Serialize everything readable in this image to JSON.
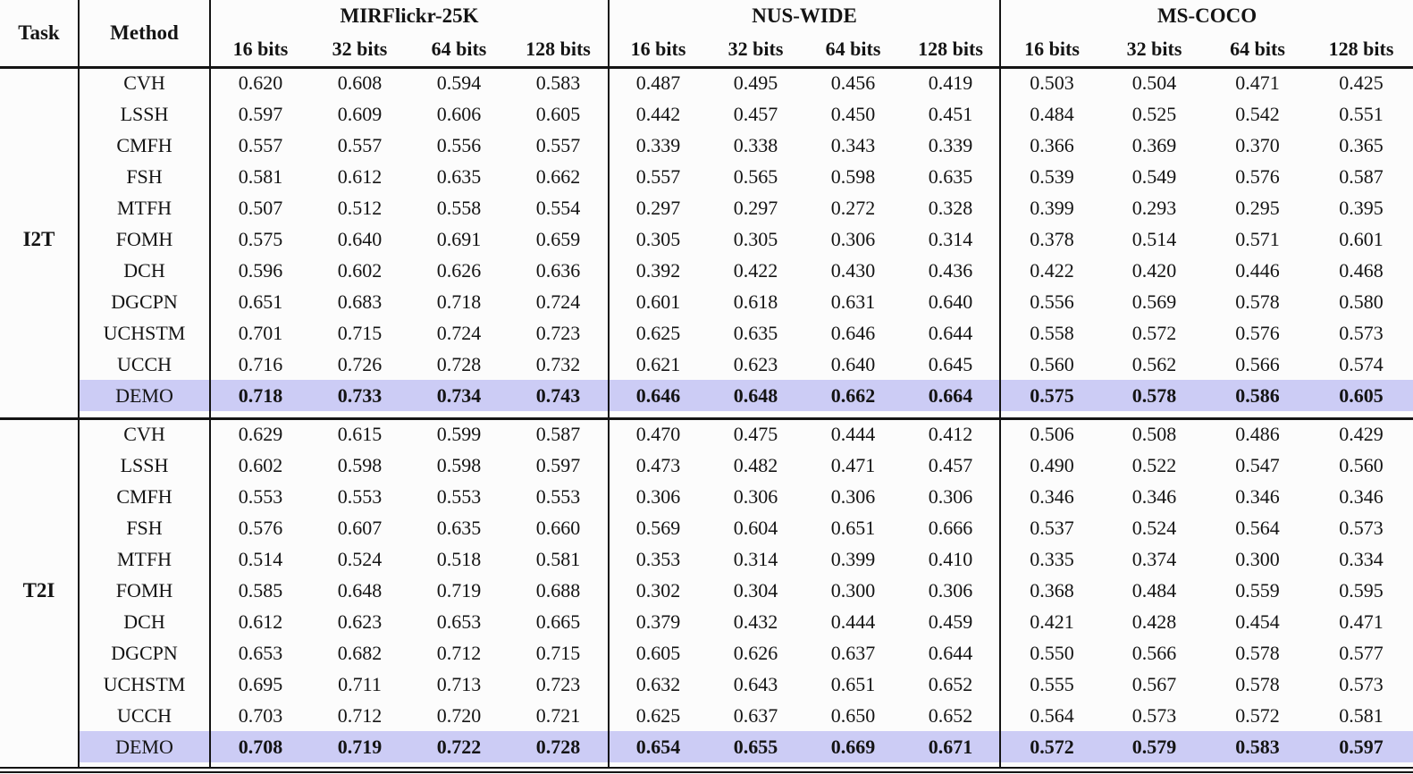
{
  "table": {
    "header": {
      "task": "Task",
      "method": "Method",
      "datasets": [
        "MIRFlickr-25K",
        "NUS-WIDE",
        "MS-COCO"
      ],
      "bits": [
        "16 bits",
        "32 bits",
        "64 bits",
        "128 bits"
      ]
    },
    "highlight_color": "#ccccf5",
    "sections": [
      {
        "task": "I2T",
        "rows": [
          {
            "method": "CVH",
            "highlight": false,
            "values": [
              "0.620",
              "0.608",
              "0.594",
              "0.583",
              "0.487",
              "0.495",
              "0.456",
              "0.419",
              "0.503",
              "0.504",
              "0.471",
              "0.425"
            ]
          },
          {
            "method": "LSSH",
            "highlight": false,
            "values": [
              "0.597",
              "0.609",
              "0.606",
              "0.605",
              "0.442",
              "0.457",
              "0.450",
              "0.451",
              "0.484",
              "0.525",
              "0.542",
              "0.551"
            ]
          },
          {
            "method": "CMFH",
            "highlight": false,
            "values": [
              "0.557",
              "0.557",
              "0.556",
              "0.557",
              "0.339",
              "0.338",
              "0.343",
              "0.339",
              "0.366",
              "0.369",
              "0.370",
              "0.365"
            ]
          },
          {
            "method": "FSH",
            "highlight": false,
            "values": [
              "0.581",
              "0.612",
              "0.635",
              "0.662",
              "0.557",
              "0.565",
              "0.598",
              "0.635",
              "0.539",
              "0.549",
              "0.576",
              "0.587"
            ]
          },
          {
            "method": "MTFH",
            "highlight": false,
            "values": [
              "0.507",
              "0.512",
              "0.558",
              "0.554",
              "0.297",
              "0.297",
              "0.272",
              "0.328",
              "0.399",
              "0.293",
              "0.295",
              "0.395"
            ]
          },
          {
            "method": "FOMH",
            "highlight": false,
            "values": [
              "0.575",
              "0.640",
              "0.691",
              "0.659",
              "0.305",
              "0.305",
              "0.306",
              "0.314",
              "0.378",
              "0.514",
              "0.571",
              "0.601"
            ]
          },
          {
            "method": "DCH",
            "highlight": false,
            "values": [
              "0.596",
              "0.602",
              "0.626",
              "0.636",
              "0.392",
              "0.422",
              "0.430",
              "0.436",
              "0.422",
              "0.420",
              "0.446",
              "0.468"
            ]
          },
          {
            "method": "DGCPN",
            "highlight": false,
            "values": [
              "0.651",
              "0.683",
              "0.718",
              "0.724",
              "0.601",
              "0.618",
              "0.631",
              "0.640",
              "0.556",
              "0.569",
              "0.578",
              "0.580"
            ]
          },
          {
            "method": "UCHSTM",
            "highlight": false,
            "values": [
              "0.701",
              "0.715",
              "0.724",
              "0.723",
              "0.625",
              "0.635",
              "0.646",
              "0.644",
              "0.558",
              "0.572",
              "0.576",
              "0.573"
            ]
          },
          {
            "method": "UCCH",
            "highlight": false,
            "values": [
              "0.716",
              "0.726",
              "0.728",
              "0.732",
              "0.621",
              "0.623",
              "0.640",
              "0.645",
              "0.560",
              "0.562",
              "0.566",
              "0.574"
            ]
          },
          {
            "method": "DEMO",
            "highlight": true,
            "values": [
              "0.718",
              "0.733",
              "0.734",
              "0.743",
              "0.646",
              "0.648",
              "0.662",
              "0.664",
              "0.575",
              "0.578",
              "0.586",
              "0.605"
            ]
          }
        ]
      },
      {
        "task": "T2I",
        "rows": [
          {
            "method": "CVH",
            "highlight": false,
            "values": [
              "0.629",
              "0.615",
              "0.599",
              "0.587",
              "0.470",
              "0.475",
              "0.444",
              "0.412",
              "0.506",
              "0.508",
              "0.486",
              "0.429"
            ]
          },
          {
            "method": "LSSH",
            "highlight": false,
            "values": [
              "0.602",
              "0.598",
              "0.598",
              "0.597",
              "0.473",
              "0.482",
              "0.471",
              "0.457",
              "0.490",
              "0.522",
              "0.547",
              "0.560"
            ]
          },
          {
            "method": "CMFH",
            "highlight": false,
            "values": [
              "0.553",
              "0.553",
              "0.553",
              "0.553",
              "0.306",
              "0.306",
              "0.306",
              "0.306",
              "0.346",
              "0.346",
              "0.346",
              "0.346"
            ]
          },
          {
            "method": "FSH",
            "highlight": false,
            "values": [
              "0.576",
              "0.607",
              "0.635",
              "0.660",
              "0.569",
              "0.604",
              "0.651",
              "0.666",
              "0.537",
              "0.524",
              "0.564",
              "0.573"
            ]
          },
          {
            "method": "MTFH",
            "highlight": false,
            "values": [
              "0.514",
              "0.524",
              "0.518",
              "0.581",
              "0.353",
              "0.314",
              "0.399",
              "0.410",
              "0.335",
              "0.374",
              "0.300",
              "0.334"
            ]
          },
          {
            "method": "FOMH",
            "highlight": false,
            "values": [
              "0.585",
              "0.648",
              "0.719",
              "0.688",
              "0.302",
              "0.304",
              "0.300",
              "0.306",
              "0.368",
              "0.484",
              "0.559",
              "0.595"
            ]
          },
          {
            "method": "DCH",
            "highlight": false,
            "values": [
              "0.612",
              "0.623",
              "0.653",
              "0.665",
              "0.379",
              "0.432",
              "0.444",
              "0.459",
              "0.421",
              "0.428",
              "0.454",
              "0.471"
            ]
          },
          {
            "method": "DGCPN",
            "highlight": false,
            "values": [
              "0.653",
              "0.682",
              "0.712",
              "0.715",
              "0.605",
              "0.626",
              "0.637",
              "0.644",
              "0.550",
              "0.566",
              "0.578",
              "0.577"
            ]
          },
          {
            "method": "UCHSTM",
            "highlight": false,
            "values": [
              "0.695",
              "0.711",
              "0.713",
              "0.723",
              "0.632",
              "0.643",
              "0.651",
              "0.652",
              "0.555",
              "0.567",
              "0.578",
              "0.573"
            ]
          },
          {
            "method": "UCCH",
            "highlight": false,
            "values": [
              "0.703",
              "0.712",
              "0.720",
              "0.721",
              "0.625",
              "0.637",
              "0.650",
              "0.652",
              "0.564",
              "0.573",
              "0.572",
              "0.581"
            ]
          },
          {
            "method": "DEMO",
            "highlight": true,
            "values": [
              "0.708",
              "0.719",
              "0.722",
              "0.728",
              "0.654",
              "0.655",
              "0.669",
              "0.671",
              "0.572",
              "0.579",
              "0.583",
              "0.597"
            ]
          }
        ]
      }
    ]
  }
}
